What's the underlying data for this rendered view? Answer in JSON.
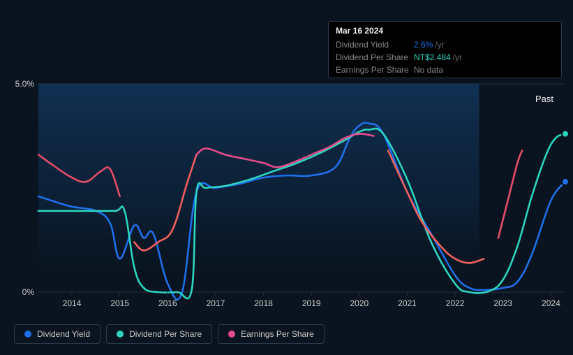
{
  "tooltip": {
    "date": "Mar 16 2024",
    "rows": [
      {
        "label": "Dividend Yield",
        "value": "2.6%",
        "unit": "/yr",
        "value_color": "#1f6feb"
      },
      {
        "label": "Dividend Per Share",
        "value": "NT$2.484",
        "unit": "/yr",
        "value_color": "#2dd4bf"
      },
      {
        "label": "Earnings Per Share",
        "value": "No data",
        "unit": "",
        "value_color": "#888888"
      }
    ]
  },
  "chart": {
    "type": "line",
    "background_color": "#0a1420",
    "plot_background_gradient": {
      "from": "#0d2a46",
      "to": "#0a1420"
    },
    "grid_color": "#232f3d",
    "axis_label_color": "#cccccc",
    "x_range": [
      2013.3,
      2024.3
    ],
    "y_range": [
      0,
      5
    ],
    "y_ticks": [
      {
        "v": 0,
        "label": "0%"
      },
      {
        "v": 5,
        "label": "5.0%"
      }
    ],
    "x_ticks": [
      2014,
      2015,
      2016,
      2017,
      2018,
      2019,
      2020,
      2021,
      2022,
      2023,
      2024
    ],
    "past_label": "Past",
    "shade_x_from": 2013.3,
    "shade_x_to": 2022.5,
    "series": [
      {
        "name": "Dividend Yield",
        "color": "#1f6feb",
        "end_marker": true,
        "points": [
          [
            2013.3,
            2.3
          ],
          [
            2013.7,
            2.15
          ],
          [
            2014.0,
            2.05
          ],
          [
            2014.5,
            1.95
          ],
          [
            2014.8,
            1.65
          ],
          [
            2015.0,
            0.8
          ],
          [
            2015.3,
            1.6
          ],
          [
            2015.5,
            1.3
          ],
          [
            2015.7,
            1.4
          ],
          [
            2016.0,
            0.2
          ],
          [
            2016.3,
            0.0
          ],
          [
            2016.6,
            2.4
          ],
          [
            2017.0,
            2.5
          ],
          [
            2017.5,
            2.6
          ],
          [
            2018.0,
            2.75
          ],
          [
            2018.5,
            2.8
          ],
          [
            2019.0,
            2.8
          ],
          [
            2019.5,
            3.0
          ],
          [
            2019.8,
            3.7
          ],
          [
            2020.0,
            4.0
          ],
          [
            2020.2,
            4.05
          ],
          [
            2020.5,
            3.8
          ],
          [
            2021.0,
            2.4
          ],
          [
            2021.5,
            1.4
          ],
          [
            2022.0,
            0.4
          ],
          [
            2022.3,
            0.1
          ],
          [
            2022.6,
            0.05
          ],
          [
            2023.0,
            0.1
          ],
          [
            2023.3,
            0.25
          ],
          [
            2023.6,
            0.9
          ],
          [
            2024.0,
            2.2
          ],
          [
            2024.3,
            2.65
          ]
        ]
      },
      {
        "name": "Dividend Per Share",
        "color": "#2dd4bf",
        "end_marker": true,
        "points": [
          [
            2013.3,
            1.95
          ],
          [
            2013.8,
            1.95
          ],
          [
            2014.3,
            1.95
          ],
          [
            2014.9,
            1.95
          ],
          [
            2015.1,
            1.95
          ],
          [
            2015.3,
            0.6
          ],
          [
            2015.5,
            0.1
          ],
          [
            2015.8,
            0.0
          ],
          [
            2016.2,
            0.0
          ],
          [
            2016.5,
            0.05
          ],
          [
            2016.6,
            2.4
          ],
          [
            2016.8,
            2.5
          ],
          [
            2017.2,
            2.55
          ],
          [
            2017.7,
            2.7
          ],
          [
            2018.2,
            2.9
          ],
          [
            2018.7,
            3.1
          ],
          [
            2019.2,
            3.35
          ],
          [
            2019.7,
            3.65
          ],
          [
            2020.0,
            3.85
          ],
          [
            2020.2,
            3.9
          ],
          [
            2020.5,
            3.8
          ],
          [
            2021.0,
            2.7
          ],
          [
            2021.5,
            1.2
          ],
          [
            2022.0,
            0.2
          ],
          [
            2022.3,
            0.0
          ],
          [
            2022.7,
            0.02
          ],
          [
            2023.0,
            0.3
          ],
          [
            2023.3,
            1.1
          ],
          [
            2023.6,
            2.3
          ],
          [
            2023.9,
            3.3
          ],
          [
            2024.1,
            3.7
          ],
          [
            2024.3,
            3.8
          ]
        ]
      },
      {
        "name": "Earnings Per Share",
        "color_segments": [
          {
            "from_x": 2013.3,
            "to_x": 2015.1,
            "color": "#e64c67"
          },
          {
            "from_x": 2015.1,
            "to_x": 2016.6,
            "color": "#f25f5c"
          },
          {
            "from_x": 2016.6,
            "to_x": 2020.4,
            "color": "#e64c8c"
          },
          {
            "from_x": 2020.4,
            "to_x": 2022.7,
            "color": "#f25f5c"
          },
          {
            "from_x": 2022.7,
            "to_x": 2023.4,
            "color": "#e64c67"
          }
        ],
        "color": "#e64c8c",
        "end_marker": false,
        "points": [
          [
            2013.3,
            3.3
          ],
          [
            2013.6,
            3.05
          ],
          [
            2014.0,
            2.75
          ],
          [
            2014.3,
            2.65
          ],
          [
            2014.6,
            2.9
          ],
          [
            2014.8,
            2.95
          ],
          [
            2015.0,
            2.3
          ],
          [
            2015.3,
            1.2
          ],
          [
            2015.5,
            1.0
          ],
          [
            2015.8,
            1.2
          ],
          [
            2016.1,
            1.5
          ],
          [
            2016.4,
            2.6
          ],
          [
            2016.6,
            3.3
          ],
          [
            2016.8,
            3.45
          ],
          [
            2017.2,
            3.3
          ],
          [
            2017.6,
            3.2
          ],
          [
            2018.0,
            3.1
          ],
          [
            2018.3,
            3.0
          ],
          [
            2018.7,
            3.15
          ],
          [
            2019.0,
            3.3
          ],
          [
            2019.4,
            3.5
          ],
          [
            2019.7,
            3.7
          ],
          [
            2020.0,
            3.8
          ],
          [
            2020.3,
            3.75
          ],
          [
            2020.6,
            3.4
          ],
          [
            2021.0,
            2.4
          ],
          [
            2021.3,
            1.7
          ],
          [
            2021.7,
            1.1
          ],
          [
            2022.0,
            0.8
          ],
          [
            2022.3,
            0.7
          ],
          [
            2022.6,
            0.8
          ],
          [
            2022.9,
            1.3
          ],
          [
            2023.1,
            2.2
          ],
          [
            2023.3,
            3.1
          ],
          [
            2023.4,
            3.4
          ]
        ]
      }
    ],
    "legend": [
      {
        "label": "Dividend Yield",
        "color": "#1f6feb"
      },
      {
        "label": "Dividend Per Share",
        "color": "#2dd4bf"
      },
      {
        "label": "Earnings Per Share",
        "color": "#e64c8c"
      }
    ]
  }
}
